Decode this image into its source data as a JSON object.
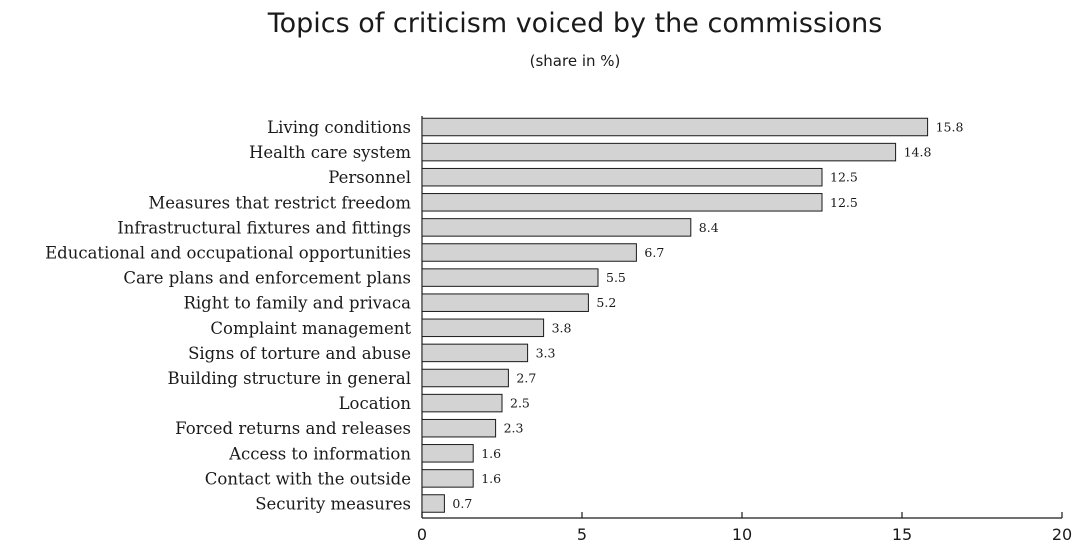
{
  "chart_data": {
    "type": "bar",
    "orientation": "horizontal",
    "title": "Topics of criticism voiced by the commissions",
    "subtitle": "(share in %)",
    "categories": [
      "Living conditions",
      "Health care system",
      "Personnel",
      "Measures that restrict freedom",
      "Infrastructural fixtures and fittings",
      "Educational and occupational opportunities",
      "Care plans and enforcement plans",
      "Right to family and privaca",
      "Complaint management",
      "Signs of torture and abuse",
      "Building structure in general",
      "Location",
      "Forced returns and releases",
      "Access to information",
      "Contact with the outside",
      "Security measures"
    ],
    "values": [
      15.8,
      14.8,
      12.5,
      12.5,
      8.4,
      6.7,
      5.5,
      5.2,
      3.8,
      3.3,
      2.7,
      2.5,
      2.3,
      1.6,
      1.6,
      0.7
    ],
    "value_labels": [
      "15.8",
      "14.8",
      "12.5",
      "12.5",
      "8.4",
      "6.7",
      "5.5",
      "5.2",
      "3.8",
      "3.3",
      "2.7",
      "2.5",
      "2.3",
      "1.6",
      "1.6",
      "0.7"
    ],
    "xlim": [
      0,
      20
    ],
    "xticks": [
      0,
      5,
      10,
      15,
      20
    ],
    "xlabel": "",
    "ylabel": "",
    "grid": false,
    "bar_color": "#d3d3d3",
    "bar_edge_color": "#1a1a1a"
  }
}
